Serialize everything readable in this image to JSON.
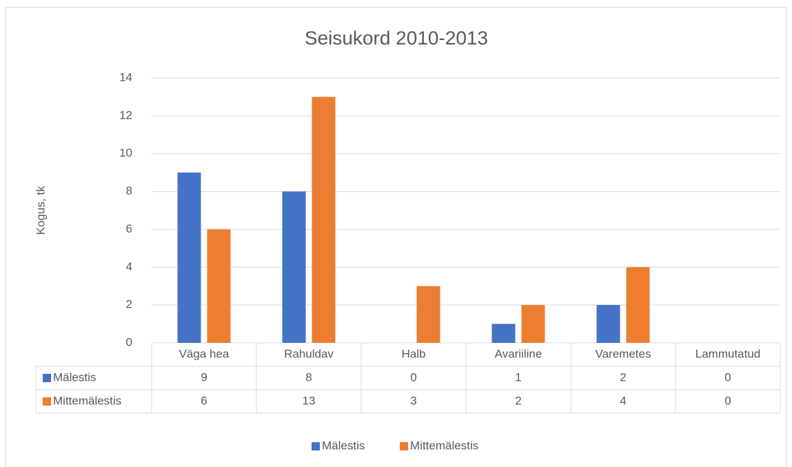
{
  "chart_data": {
    "type": "bar",
    "title": "Seisukord 2010-2013",
    "y_label": "Kogus, tk",
    "categories": [
      "Väga hea",
      "Rahuldav",
      "Halb",
      "Avariiline",
      "Varemetes",
      "Lammutatud"
    ],
    "series": [
      {
        "name": "Mälestis",
        "color": "#4472c4",
        "values": [
          9,
          8,
          0,
          1,
          2,
          0
        ]
      },
      {
        "name": "Mittemälestis",
        "color": "#ed7d31",
        "values": [
          6,
          13,
          3,
          2,
          4,
          0
        ]
      }
    ],
    "ylim": [
      0,
      14
    ],
    "yticks": [
      0,
      2,
      4,
      6,
      8,
      10,
      12,
      14
    ],
    "grid": true,
    "data_table": true,
    "legend": "bottom"
  }
}
